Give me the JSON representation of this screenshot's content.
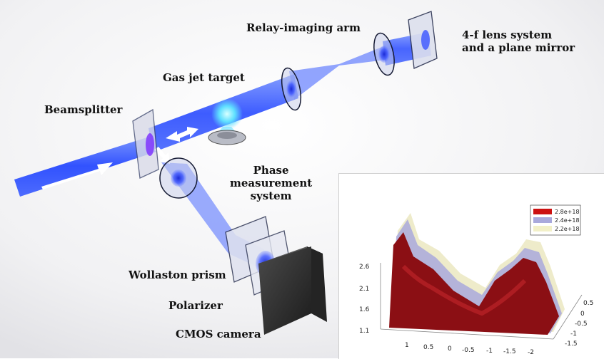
{
  "labels": {
    "relay_arm": "Relay-imaging arm",
    "lens_system": "4-f lens system\nand a plane mirror",
    "gas_jet": "Gas jet target",
    "beamsplitter": "Beamsplitter",
    "phase_system": "Phase\nmeasurement\nsystem",
    "wollaston": "Wollaston prism",
    "polarizer": "Polarizer",
    "cmos": "CMOS camera"
  },
  "plot": {
    "legend": [
      {
        "label": "2.8e+18",
        "color": "#cc1111"
      },
      {
        "label": "2.4e+18",
        "color": "#a9a9dc"
      },
      {
        "label": "2.2e+18",
        "color": "#f2f0c8"
      }
    ],
    "z_ticks": [
      "2.6",
      "2.1",
      "1.6",
      "1.1"
    ],
    "x_ticks": [
      "1",
      "0.5",
      "0",
      "-0.5",
      "-1",
      "-1.5",
      "-2"
    ],
    "y_ticks": [
      "0.5",
      "0",
      "-0.5",
      "-1",
      "-1.5"
    ]
  },
  "colors": {
    "beam": "#2f5fff",
    "iso_high": "#8b0f14",
    "iso_mid": "#a9a9dc",
    "iso_low": "#e8e4b8"
  }
}
